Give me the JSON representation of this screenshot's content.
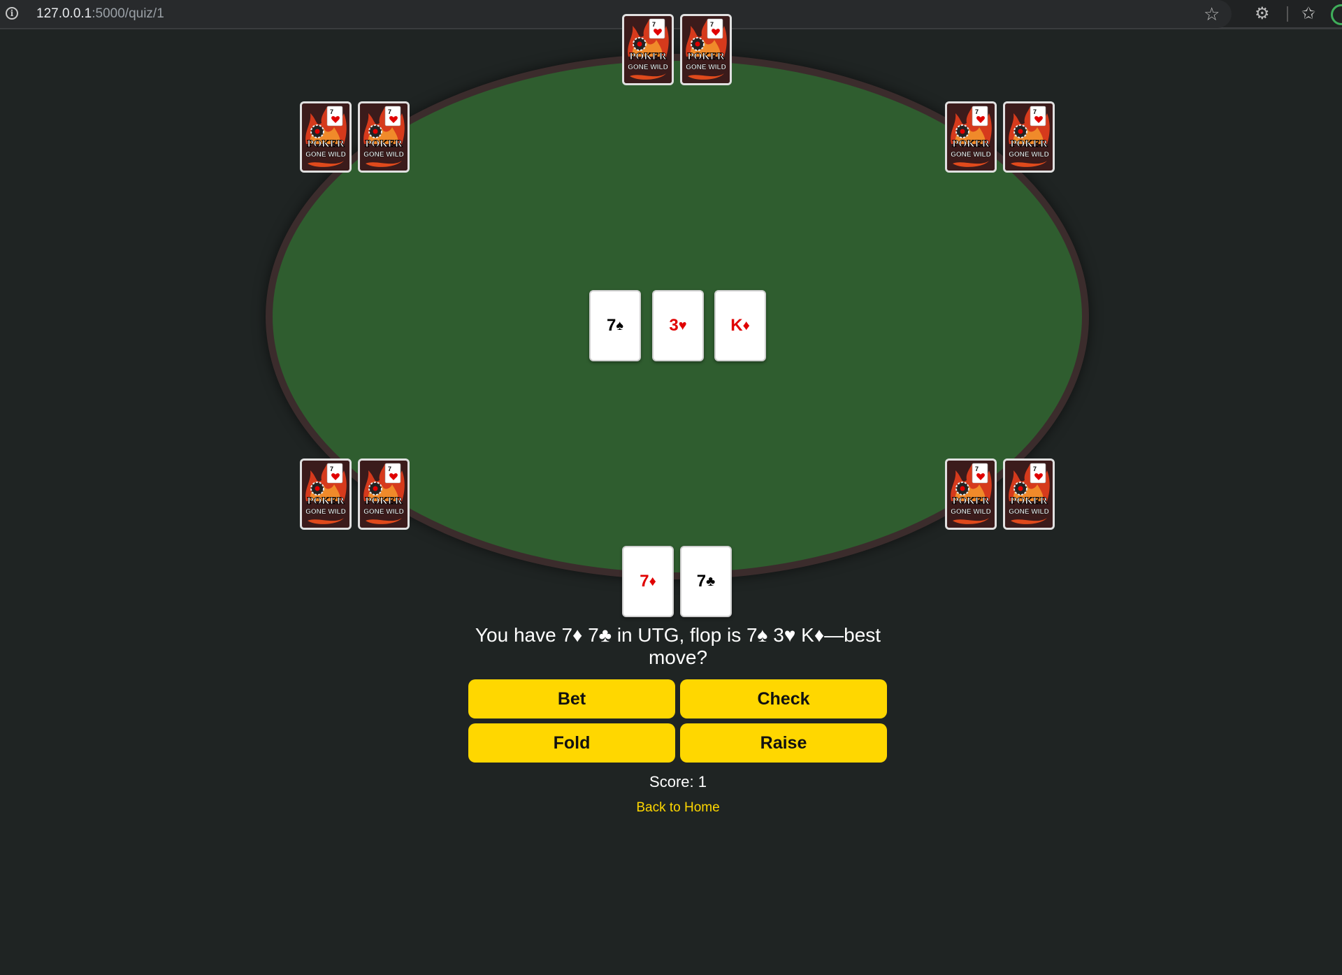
{
  "browser": {
    "url_host": "127.0.0.1",
    "url_path": ":5000/quiz/1"
  },
  "card_back": {
    "logo_line1": "POKER",
    "logo_line2": "GONE WILD",
    "corner_rank": "7"
  },
  "board": {
    "flop": [
      {
        "rank": "7",
        "suit": "♠",
        "color": "#000000"
      },
      {
        "rank": "3",
        "suit": "♥",
        "color": "#e00000"
      },
      {
        "rank": "K",
        "suit": "♦",
        "color": "#e00000"
      }
    ]
  },
  "hero": {
    "cards": [
      {
        "rank": "7",
        "suit": "♦",
        "color": "#e00000"
      },
      {
        "rank": "7",
        "suit": "♣",
        "color": "#000000"
      }
    ]
  },
  "quiz": {
    "question": "You have 7♦ 7♣ in UTG, flop is 7♠ 3♥ K♦—best move?",
    "buttons": {
      "bet": "Bet",
      "check": "Check",
      "fold": "Fold",
      "raise": "Raise"
    },
    "score": "Score: 1",
    "back_link": "Back to Home"
  },
  "colors": {
    "accent": "#ffd700",
    "felt": "#2f5d2f",
    "rail": "#3b2c2c",
    "background": "#1f2423"
  }
}
